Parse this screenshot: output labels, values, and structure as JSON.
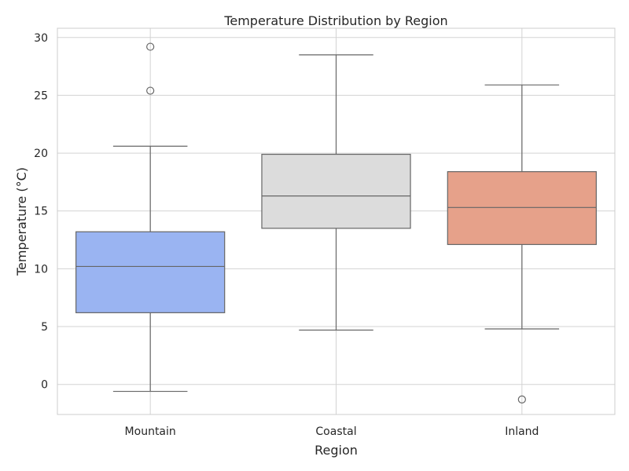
{
  "chart_data": {
    "type": "box",
    "title": "Temperature Distribution by Region",
    "xlabel": "Region",
    "ylabel": "Temperature (°C)",
    "ylim": [
      -2.6,
      30.8
    ],
    "yticks": [
      0,
      5,
      10,
      15,
      20,
      25,
      30
    ],
    "grid": true,
    "categories": [
      "Mountain",
      "Coastal",
      "Inland"
    ],
    "boxes": [
      {
        "category": "Mountain",
        "whisker_low": -0.6,
        "q1": 6.2,
        "median": 10.2,
        "q3": 13.2,
        "whisker_high": 20.6,
        "outliers": [
          25.4,
          29.2
        ],
        "color": "#9ab4f2"
      },
      {
        "category": "Coastal",
        "whisker_low": 4.7,
        "q1": 13.5,
        "median": 16.3,
        "q3": 19.9,
        "whisker_high": 28.5,
        "outliers": [],
        "color": "#dcdcdc"
      },
      {
        "category": "Inland",
        "whisker_low": 4.8,
        "q1": 12.1,
        "median": 15.3,
        "q3": 18.4,
        "whisker_high": 25.9,
        "outliers": [
          -1.3
        ],
        "color": "#e6a18a"
      }
    ],
    "line_color": "#666666",
    "grid_color": "#d3d3d3"
  }
}
